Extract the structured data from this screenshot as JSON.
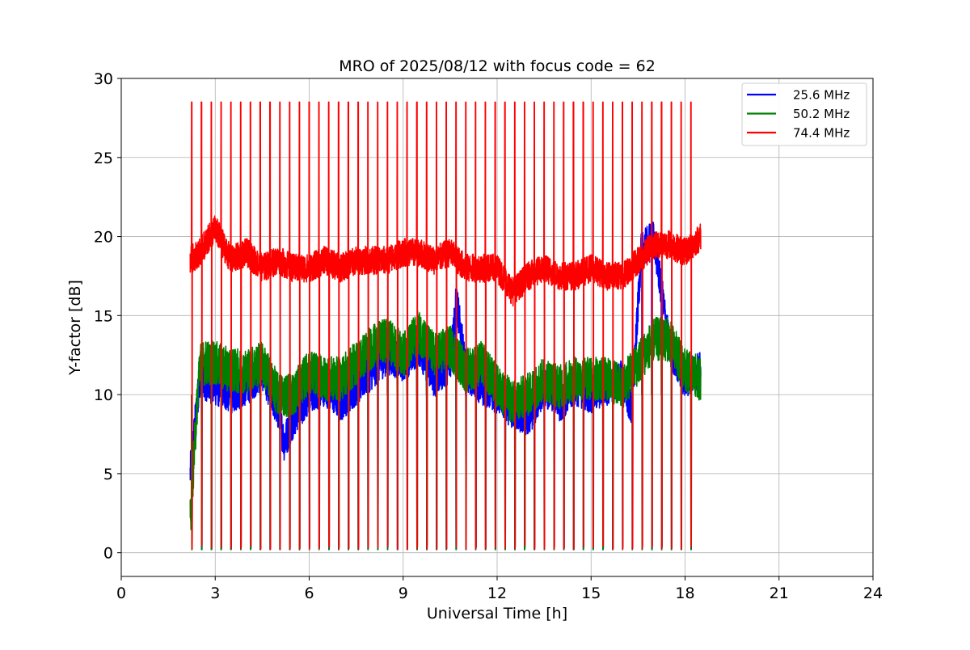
{
  "chart_data": {
    "type": "line",
    "title": "MRO of 2025/08/12 with focus code = 62",
    "xlabel": "Universal Time [h]",
    "ylabel": "Y-factor [dB]",
    "xlim": [
      0,
      24
    ],
    "ylim": [
      -1.5,
      30
    ],
    "xticks": [
      0,
      3,
      6,
      9,
      12,
      15,
      18,
      21,
      24
    ],
    "yticks": [
      0,
      5,
      10,
      15,
      20,
      25,
      30
    ],
    "xtick_labels": [
      "0",
      "3",
      "6",
      "9",
      "12",
      "15",
      "18",
      "21",
      "24"
    ],
    "ytick_labels": [
      "0",
      "5",
      "10",
      "15",
      "20",
      "25",
      "30"
    ],
    "grid": true,
    "legend_position": "top-right",
    "time_range": [
      2.2,
      18.5
    ],
    "calibration_spikes": {
      "count": 52,
      "start": 2.25,
      "interval": 0.3125,
      "high_value": 28.5,
      "low_value": 0.2
    },
    "series": [
      {
        "name": "25.6 MHz",
        "color": "#0000ff",
        "x": [
          2.2,
          2.5,
          3,
          3.5,
          4,
          4.5,
          5,
          5.2,
          5.5,
          6,
          6.5,
          7,
          7.5,
          8,
          8.5,
          9,
          9.5,
          10,
          10.5,
          10.7,
          11,
          11.5,
          12,
          12.5,
          13,
          13.5,
          14,
          14.5,
          15,
          15.5,
          16,
          16.3,
          16.6,
          17,
          17.5,
          18,
          18.5
        ],
        "values": [
          5,
          11,
          10.5,
          10,
          10.5,
          11.5,
          9,
          7,
          8.5,
          10,
          10.5,
          9.5,
          10.5,
          11.5,
          12.5,
          12,
          13,
          11,
          12,
          16,
          11.5,
          10.5,
          10,
          9,
          8.5,
          10.5,
          9.5,
          10.5,
          10,
          10.5,
          11,
          9,
          19,
          20,
          13,
          11,
          11.5
        ]
      },
      {
        "name": "50.2 MHz",
        "color": "#008000",
        "x": [
          2.2,
          2.5,
          3,
          3.5,
          4,
          4.5,
          5,
          5.5,
          6,
          6.5,
          7,
          7.5,
          8,
          8.5,
          9,
          9.5,
          10,
          10.5,
          11,
          11.5,
          12,
          12.5,
          13,
          13.5,
          14,
          14.5,
          15,
          15.5,
          16,
          16.5,
          17,
          17.5,
          18,
          18.5
        ],
        "values": [
          2,
          12,
          12,
          11.5,
          11.5,
          12,
          10,
          10,
          11.5,
          11,
          11,
          12,
          13,
          13.5,
          12.5,
          14,
          12.5,
          13,
          11.5,
          12,
          10.5,
          9.5,
          10,
          11,
          10.5,
          11,
          11,
          11,
          10.5,
          12,
          13.5,
          13.5,
          11.5,
          11
        ]
      },
      {
        "name": "74.4 MHz",
        "color": "#ff0000",
        "x": [
          2.2,
          2.5,
          3,
          3.5,
          4,
          4.5,
          5,
          5.5,
          6,
          6.5,
          7,
          7.5,
          8,
          8.5,
          9,
          9.5,
          10,
          10.5,
          11,
          11.5,
          12,
          12.5,
          13,
          13.5,
          14,
          14.5,
          15,
          15.5,
          16,
          16.5,
          17,
          17.5,
          18,
          18.5
        ],
        "values": [
          18.5,
          19,
          20.5,
          18.5,
          19,
          18,
          18.5,
          18,
          18,
          18.5,
          18,
          18.5,
          18.5,
          18.5,
          19,
          19,
          18.5,
          19,
          18,
          18,
          18,
          16.5,
          17.5,
          18,
          17.5,
          17.5,
          18,
          17.5,
          17.5,
          18.5,
          19.5,
          19.5,
          19,
          20
        ]
      }
    ]
  }
}
